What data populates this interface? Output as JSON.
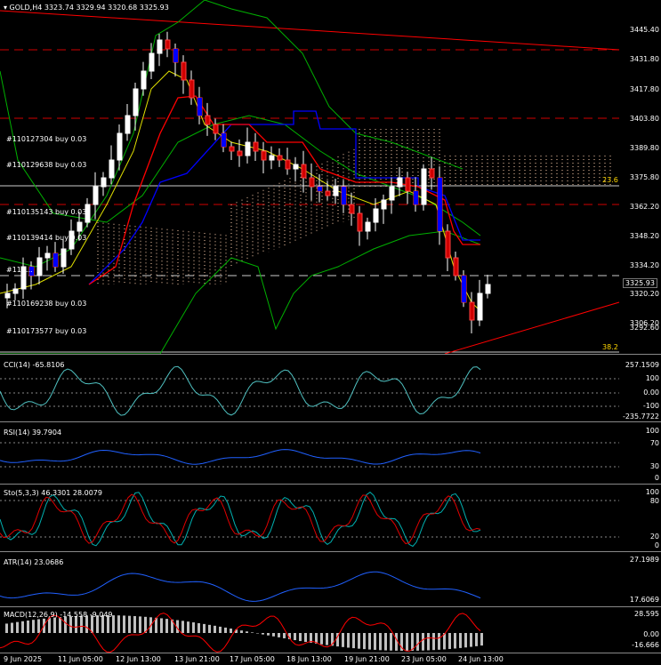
{
  "main": {
    "title": "▾ GOLD,H4  3323.74 3329.94 3320.68 3325.93",
    "price_axis": [
      "3445.40",
      "3431.80",
      "3417.80",
      "3403.80",
      "3389.80",
      "3375.80",
      "3362.20",
      "3348.20",
      "3334.20",
      "3320.20",
      "3306.20",
      "3292.60"
    ],
    "current_price": "3325.93",
    "fib_high_label": "23.6",
    "fib_low_label": "38.2",
    "orders": [
      "#110127304 buy 0.03",
      "#110129638 buy 0.03",
      "#110135143 buy 0.03",
      "#110139414 buy 0.03",
      "#110...",
      "#110169238 buy 0.03",
      "#110173577 buy 0.03"
    ]
  },
  "cci": {
    "title": "CCI(14) -65.8106",
    "axis": [
      "257.1509",
      "100",
      "0.00",
      "-100",
      "-235.7722"
    ]
  },
  "rsi": {
    "title": "RSI(14) 39.7904",
    "axis": [
      "100",
      "70",
      "30",
      "0"
    ]
  },
  "sto": {
    "title": "Sto(5,3,3) 46.3301 28.0079",
    "axis": [
      "100",
      "80",
      "20",
      "0"
    ]
  },
  "atr": {
    "title": "ATR(14) 23.0686",
    "axis": [
      "27.1989",
      "17.6069"
    ]
  },
  "macd": {
    "title": "MACD(12,26,9) -14.558 -9.049",
    "axis": [
      "28.595",
      "0.00",
      "-16.666"
    ]
  },
  "time_axis": [
    "9 Jun 2025",
    "11 Jun 05:00",
    "12 Jun 13:00",
    "13 Jun 21:00",
    "17 Jun 05:00",
    "18 Jun 13:00",
    "19 Jun 21:00",
    "23 Jun 05:00",
    "24 Jun 13:00"
  ],
  "colors": {
    "bull": "#ffffff",
    "bear": "#d00000",
    "blue": "#0000ff",
    "red": "#ff0000",
    "green": "#00c000",
    "grid": "#555555"
  }
}
